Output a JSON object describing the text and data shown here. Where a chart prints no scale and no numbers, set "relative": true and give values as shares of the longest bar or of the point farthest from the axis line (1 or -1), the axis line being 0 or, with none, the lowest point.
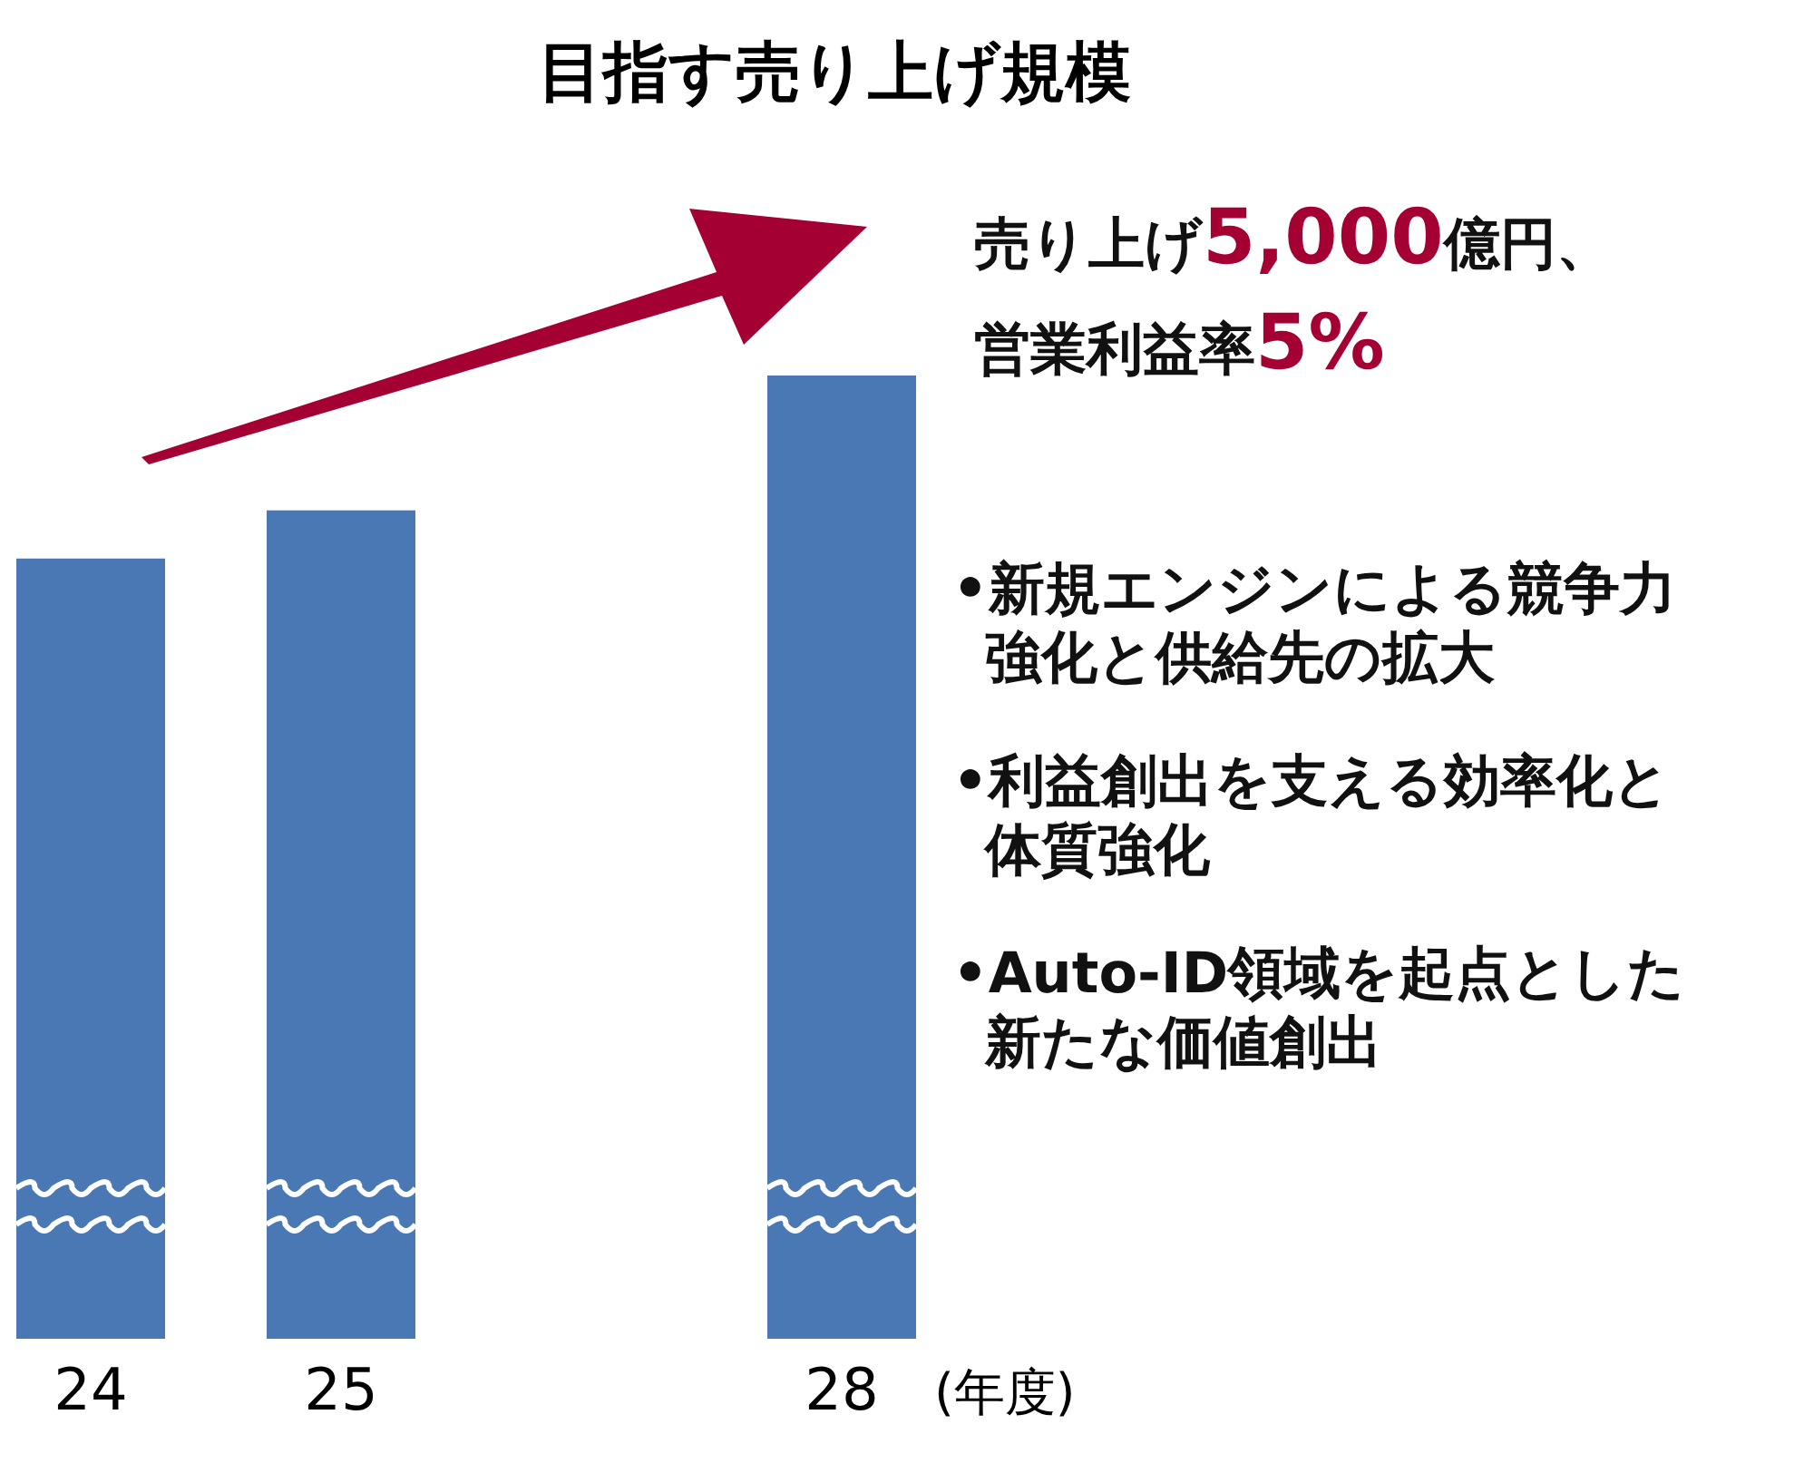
{
  "chart_data": {
    "type": "bar",
    "title": "目指す売り上げ規模",
    "xlabel": "(年度)",
    "categories": [
      "24",
      "25",
      null,
      "28"
    ],
    "values": [
      0.81,
      0.86,
      null,
      1
    ],
    "color": "#4a78b5",
    "relative": true,
    "annotations": [
      "売り上げ5,000億円、",
      "営業利益率5%",
      "•新規エンジンによる競争力強化と供給先の拡大",
      "•利益創出を支える効率化と体質強化",
      "•Auto-ID領域を起点とした新たな価値創出"
    ]
  }
}
